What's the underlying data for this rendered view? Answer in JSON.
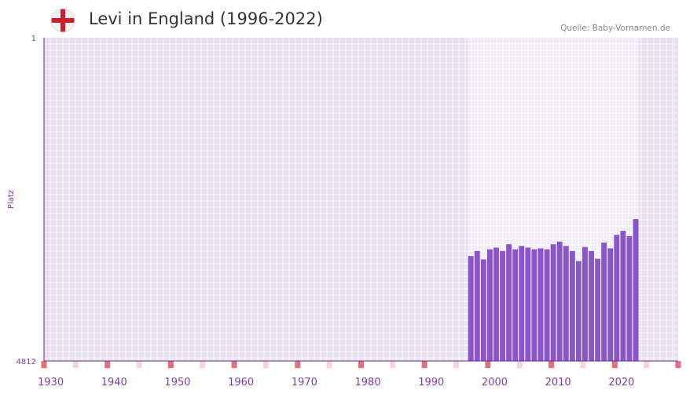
{
  "header": {
    "title": "Levi in England (1996-2022)",
    "source": "Quelle: Baby-Vornamen.de",
    "flag_icon": "england-flag-icon"
  },
  "colors": {
    "bar": "#8a55c8",
    "axis": "#6a2c91",
    "text": "#7b3f9e",
    "background": "#e6e1ef",
    "highlight": "#f1edf7",
    "marker_strong": "#e0707a",
    "marker_light": "#f5d5dc"
  },
  "chart_data": {
    "type": "bar",
    "title": "Levi in England (1996-2022)",
    "xlabel": "",
    "ylabel": "Platz",
    "y_inverted": true,
    "ylim": [
      1,
      4812
    ],
    "y_ticks": [
      "1",
      "4812"
    ],
    "x_range": [
      1929,
      2029
    ],
    "x_ticks": [
      1930,
      1940,
      1950,
      1960,
      1970,
      1980,
      1990,
      2000,
      2010,
      2020
    ],
    "highlight_range": [
      1996,
      2023
    ],
    "x": [
      1996,
      1997,
      1998,
      1999,
      2000,
      2001,
      2002,
      2003,
      2004,
      2005,
      2006,
      2007,
      2008,
      2009,
      2010,
      2011,
      2012,
      2013,
      2014,
      2015,
      2016,
      2017,
      2018,
      2019,
      2020,
      2021,
      2022
    ],
    "values": [
      3250,
      3175,
      3300,
      3150,
      3125,
      3175,
      3075,
      3150,
      3100,
      3125,
      3150,
      3135,
      3150,
      3075,
      3035,
      3100,
      3175,
      3325,
      3115,
      3175,
      3290,
      3050,
      3135,
      2935,
      2875,
      2955,
      2700
    ]
  }
}
